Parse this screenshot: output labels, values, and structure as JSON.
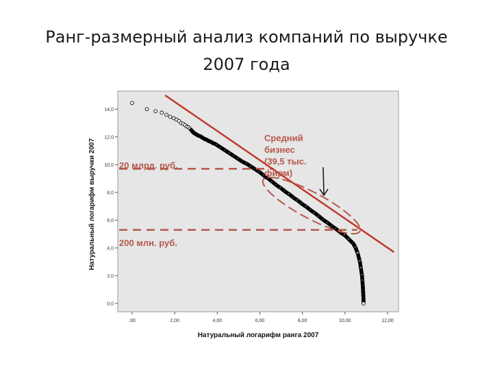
{
  "slide": {
    "title": "Ранг-размерный анализ компаний по выручке 2007 года"
  },
  "chart_data": {
    "type": "scatter",
    "title": "",
    "xlabel": "Натуральный логарифм ранга 2007",
    "ylabel": "Натуральный логарифм выручки 2007",
    "xlim": [
      0,
      12
    ],
    "ylim": [
      -0.6,
      15.3
    ],
    "x_ticks": [
      ",00",
      "2,00",
      "4,00",
      "6,00",
      "8,00",
      "10,00",
      "12,00"
    ],
    "y_ticks": [
      "0,0",
      "2,0",
      "4,0",
      "6,0",
      "8,0",
      "10,0",
      "12,0",
      "14,0"
    ],
    "series": [
      {
        "marker": "open-circle",
        "color": "#000000",
        "x": [
          0.0,
          0.69,
          1.1,
          1.39,
          1.61,
          1.79,
          1.95,
          2.08,
          2.2,
          2.3,
          2.4,
          2.48,
          2.56,
          2.64,
          2.71,
          2.77,
          2.83,
          2.89,
          2.94,
          3.0,
          3.1,
          3.2,
          3.3,
          3.4,
          3.5,
          3.6,
          3.7,
          3.8,
          3.9,
          4.0,
          4.2,
          4.4,
          4.6,
          4.8,
          5.0,
          5.2,
          5.4,
          5.6,
          5.8,
          6.0,
          6.2,
          6.4,
          6.6,
          6.8,
          7.0,
          7.2,
          7.4,
          7.6,
          7.8,
          8.0,
          8.2,
          8.4,
          8.6,
          8.8,
          9.0,
          9.2,
          9.4,
          9.6,
          9.8,
          10.0,
          10.2,
          10.4,
          10.5,
          10.6,
          10.7,
          10.75,
          10.8,
          10.82,
          10.84,
          10.85,
          10.86,
          10.87,
          10.87
        ],
        "y": [
          14.45,
          14.0,
          13.85,
          13.75,
          13.6,
          13.45,
          13.35,
          13.25,
          13.15,
          13.0,
          12.95,
          12.85,
          12.75,
          12.7,
          12.6,
          12.5,
          12.4,
          12.3,
          12.25,
          12.2,
          12.1,
          12.05,
          11.95,
          11.85,
          11.8,
          11.7,
          11.65,
          11.55,
          11.5,
          11.4,
          11.2,
          11.0,
          10.8,
          10.6,
          10.4,
          10.2,
          10.05,
          9.85,
          9.65,
          9.45,
          9.2,
          9.0,
          8.75,
          8.5,
          8.3,
          8.05,
          7.85,
          7.6,
          7.4,
          7.15,
          6.95,
          6.7,
          6.5,
          6.25,
          6.0,
          5.8,
          5.55,
          5.35,
          5.1,
          4.9,
          4.6,
          4.3,
          4.0,
          3.6,
          3.0,
          2.5,
          2.0,
          1.6,
          1.2,
          0.9,
          0.6,
          0.3,
          0.0
        ]
      },
      {
        "marker": "line",
        "color": "#c0392b",
        "x": [
          1.55,
          12.3
        ],
        "y": [
          15.0,
          3.7
        ]
      }
    ],
    "grid": false,
    "legend": "none",
    "annotations": {
      "segment_label": "Средний\nбизнес\n(39,5 тыс.\nфирм)",
      "level_high_label": "20 млрд. руб.",
      "level_low_label": "200 млн. руб.",
      "level_high_y": 9.7,
      "level_low_y": 5.3
    },
    "plot_background": "#e6e6e6",
    "accent_color": "#c0392b",
    "annotation_color": "#b5574a"
  }
}
